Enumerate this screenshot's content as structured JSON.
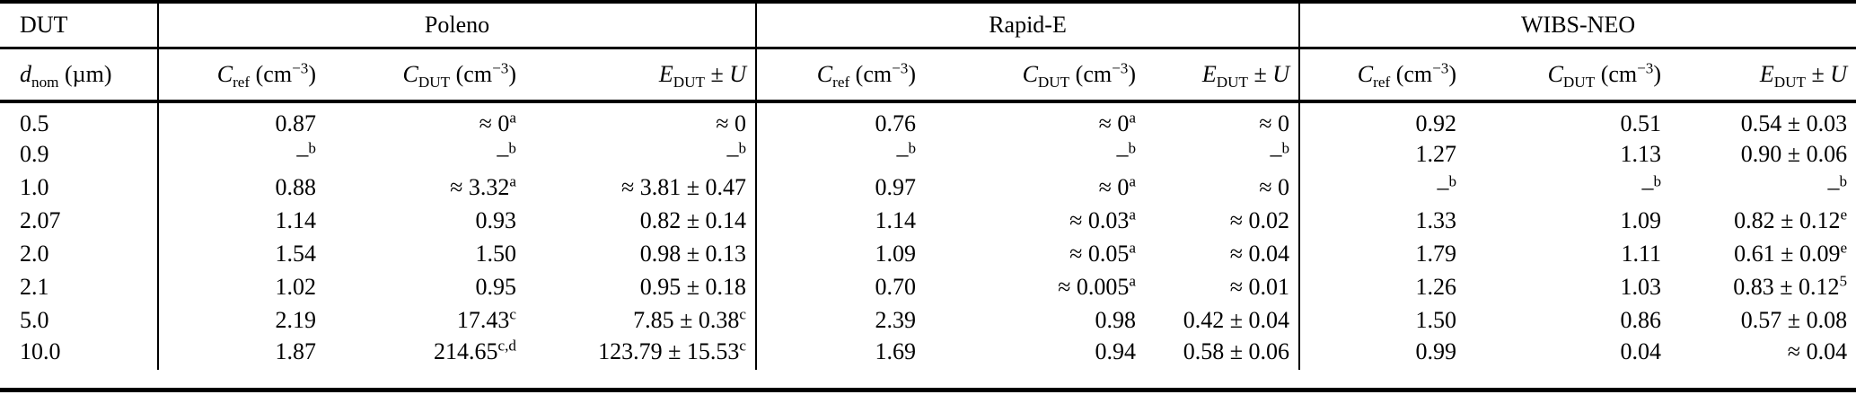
{
  "table": {
    "title_semantics": "Device-under-test counting efficiency comparison table",
    "group_headers": [
      "DUT",
      "Poleno",
      "Rapid-E",
      "WIBS-NEO"
    ],
    "column_headers": [
      "*d*_[nom] (µm)",
      "*C*_[ref] (cm^[−3])",
      "*C*_[DUT] (cm^[−3])",
      "*E*_[DUT] ± *U*",
      "*C*_[ref] (cm^[−3])",
      "*C*_[DUT] (cm^[−3])",
      "*E*_[DUT] ± *U*",
      "*C*_[ref] (cm^[−3])",
      "*C*_[DUT] (cm^[−3])",
      "*E*_[DUT] ± *U*"
    ],
    "rows": [
      [
        "0.5",
        "0.87",
        "≈ 0^[a]",
        "≈ 0",
        "0.76",
        "≈ 0^[a]",
        "≈ 0",
        "0.92",
        "0.51",
        "0.54 ± 0.03"
      ],
      [
        "0.9",
        "–^[b]",
        "–^[b]",
        "–^[b]",
        "–^[b]",
        "–^[b]",
        "–^[b]",
        "1.27",
        "1.13",
        "0.90 ± 0.06"
      ],
      [
        "1.0",
        "0.88",
        "≈ 3.32^[a]",
        "≈ 3.81 ± 0.47",
        "0.97",
        "≈ 0^[a]",
        "≈ 0",
        "–^[b]",
        "–^[b]",
        "–^[b]"
      ],
      [
        "2.07",
        "1.14",
        "0.93",
        "0.82 ± 0.14",
        "1.14",
        "≈ 0.03^[a]",
        "≈ 0.02",
        "1.33",
        "1.09",
        "0.82 ± 0.12^[e]"
      ],
      [
        "2.0",
        "1.54",
        "1.50",
        "0.98 ± 0.13",
        "1.09",
        "≈ 0.05^[a]",
        "≈ 0.04",
        "1.79",
        "1.11",
        "0.61 ± 0.09^[e]"
      ],
      [
        "2.1",
        "1.02",
        "0.95",
        "0.95 ± 0.18",
        "0.70",
        "≈ 0.005^[a]",
        "≈ 0.01",
        "1.26",
        "1.03",
        "0.83 ± 0.12^[5]"
      ],
      [
        "5.0",
        "2.19",
        "17.43^[c]",
        "7.85 ± 0.38^[c]",
        "2.39",
        "0.98",
        "0.42 ± 0.04",
        "1.50",
        "0.86",
        "0.57 ± 0.08"
      ],
      [
        "10.0",
        "1.87",
        "214.65^[c,d]",
        "123.79 ± 15.53^[c]",
        "1.69",
        "0.94",
        "0.58 ± 0.06",
        "0.99",
        "0.04",
        "≈ 0.04"
      ]
    ]
  }
}
